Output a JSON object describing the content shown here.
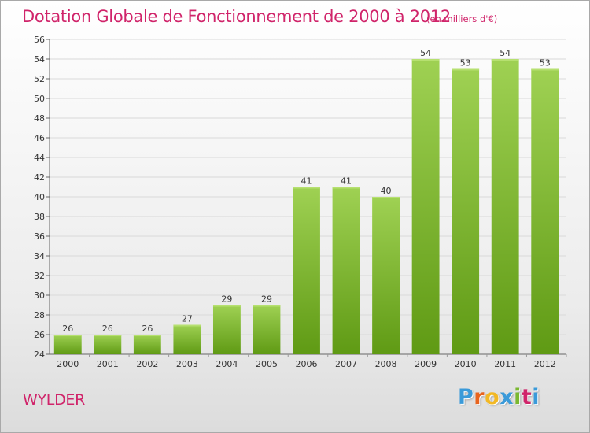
{
  "header": {
    "title": "Dotation Globale de Fonctionnement de 2000 à 2012",
    "unit": "(en milliers d'€)"
  },
  "footer": {
    "commune": "WYLDER",
    "logo_letters": [
      "P",
      "r",
      "o",
      "x",
      "i",
      "t",
      "i"
    ],
    "logo_colors": [
      "#3a9ad9",
      "#e8641e",
      "#f2b824",
      "#3a9ad9",
      "#7ab830",
      "#d0246a",
      "#3a9ad9"
    ]
  },
  "colors": {
    "bar_light": "#9fd153",
    "bar_dark": "#5f9a14",
    "accent": "#d0246a",
    "grid": "#d9d9d9"
  },
  "chart_data": {
    "type": "bar",
    "title": "Dotation Globale de Fonctionnement de 2000 à 2012",
    "subtitle": "(en milliers d'€)",
    "xlabel": "",
    "ylabel": "",
    "categories": [
      "2000",
      "2001",
      "2002",
      "2003",
      "2004",
      "2005",
      "2006",
      "2007",
      "2008",
      "2009",
      "2010",
      "2011",
      "2012"
    ],
    "values": [
      26,
      26,
      26,
      27,
      29,
      29,
      41,
      41,
      40,
      54,
      53,
      54,
      53
    ],
    "ylim": [
      24,
      56
    ],
    "ytick_step": 2,
    "grid": true,
    "legend": "none"
  }
}
